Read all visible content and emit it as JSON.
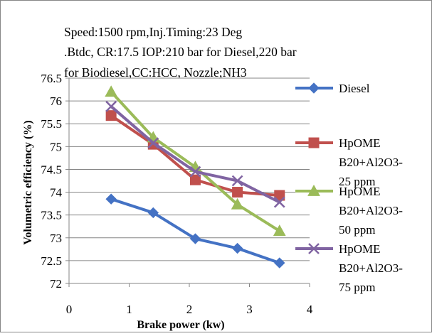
{
  "chart_data": {
    "type": "line",
    "title_lines": [
      "Speed:1500 rpm,Inj.Timing:23 Deg",
      ".Btdc, CR:17.5 IOP:210 bar for Diesel,220 bar",
      "for Biodiesel,CC:HCC,  Nozzle;NH3"
    ],
    "xlabel": "Brake power (kw)",
    "ylabel": "Volumetric efficiency (%)",
    "xlim": [
      0,
      4
    ],
    "ylim": [
      72,
      76.5
    ],
    "x_ticks": [
      "0",
      "1",
      "2",
      "3",
      "4"
    ],
    "y_ticks": [
      "72",
      "72.5",
      "73",
      "73.5",
      "74",
      "74.5",
      "75",
      "75.5",
      "76",
      "76.5"
    ],
    "grid": "horizontal",
    "legend_position": "right",
    "series": [
      {
        "name": "Diesel",
        "legend_lines": [
          "Diesel"
        ],
        "marker": "diamond",
        "color": "#4472C4",
        "x": [
          0.7,
          1.4,
          2.1,
          2.8,
          3.5
        ],
        "y": [
          73.85,
          73.55,
          72.98,
          72.77,
          72.45
        ]
      },
      {
        "name": "HpOME B20+Al2O3-25 ppm",
        "legend_lines": [
          "HpOME",
          "B20+Al2O3-",
          "25 ppm"
        ],
        "marker": "square",
        "color": "#C0504D",
        "x": [
          0.7,
          1.4,
          2.1,
          2.8,
          3.5
        ],
        "y": [
          75.68,
          75.05,
          74.27,
          74.0,
          73.93
        ]
      },
      {
        "name": "HpOME B20+Al2O3-50 ppm",
        "legend_lines": [
          "HpOME",
          "B20+Al2O3-",
          "50 ppm"
        ],
        "marker": "triangle",
        "color": "#9BBB59",
        "x": [
          0.7,
          1.4,
          2.1,
          2.8,
          3.5
        ],
        "y": [
          76.2,
          75.2,
          74.55,
          73.73,
          73.15
        ]
      },
      {
        "name": "HpOME B20+Al2O3-75 ppm",
        "legend_lines": [
          "HpOME",
          "B20+Al2O3-",
          "75 ppm"
        ],
        "marker": "x",
        "color": "#8064A2",
        "x": [
          0.7,
          1.4,
          2.1,
          2.8,
          3.5
        ],
        "y": [
          75.88,
          75.08,
          74.45,
          74.25,
          73.78
        ]
      }
    ]
  }
}
